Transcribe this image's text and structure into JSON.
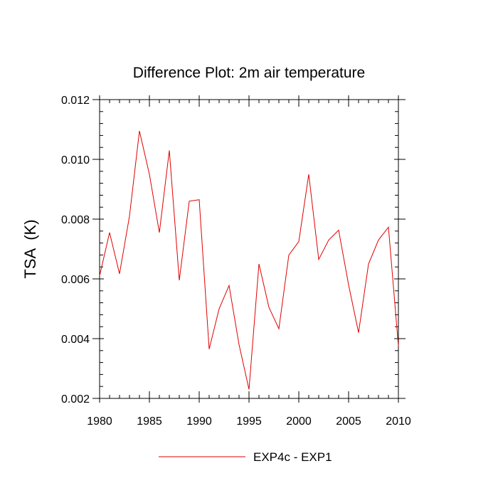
{
  "chart_data": {
    "type": "line",
    "title": "Difference Plot: 2m air temperature",
    "xlabel": "",
    "ylabel": "TSA  (K)",
    "xlim": [
      1980,
      2010
    ],
    "ylim": [
      0.002,
      0.012
    ],
    "x_ticks": [
      1980,
      1985,
      1990,
      1995,
      2000,
      2005,
      2010
    ],
    "x_tick_labels": [
      "1980",
      "1985",
      "1990",
      "1995",
      "2000",
      "2005",
      "2010"
    ],
    "y_ticks": [
      0.002,
      0.004,
      0.006,
      0.008,
      0.01,
      0.012
    ],
    "y_tick_labels": [
      "0.002",
      "0.004",
      "0.006",
      "0.008",
      "0.010",
      "0.012"
    ],
    "grid": false,
    "legend_position": "bottom-center",
    "series": [
      {
        "name": "EXP4c - EXP1",
        "color": "#e00000",
        "x": [
          1980,
          1981,
          1982,
          1983,
          1984,
          1985,
          1986,
          1987,
          1988,
          1989,
          1990,
          1991,
          1992,
          1993,
          1994,
          1995,
          1996,
          1997,
          1998,
          1999,
          2000,
          2001,
          2002,
          2003,
          2004,
          2005,
          2006,
          2007,
          2008,
          2009,
          2010
        ],
        "values": [
          0.0061,
          0.00755,
          0.00617,
          0.0081,
          0.01095,
          0.0095,
          0.00755,
          0.0103,
          0.00595,
          0.0086,
          0.00865,
          0.00365,
          0.005,
          0.00578,
          0.0038,
          0.0023,
          0.0065,
          0.00505,
          0.00433,
          0.0068,
          0.00725,
          0.0095,
          0.00665,
          0.0073,
          0.00763,
          0.0058,
          0.0042,
          0.0065,
          0.0073,
          0.00773,
          0.00375
        ]
      }
    ]
  }
}
